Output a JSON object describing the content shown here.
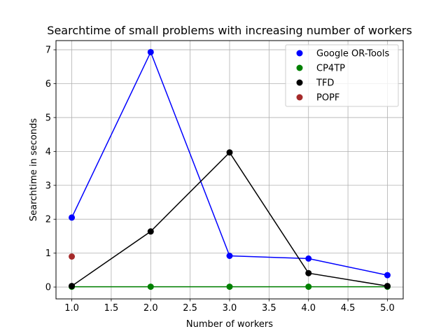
{
  "chart_data": {
    "type": "line",
    "title": "Searchtime of small problems with increasing number of workers",
    "xlabel": "Number of workers",
    "ylabel": "Searchtime in seconds",
    "xlim": [
      0.8,
      5.2
    ],
    "ylim": [
      -0.35,
      7.27
    ],
    "xticks": [
      "1.0",
      "1.5",
      "2.0",
      "2.5",
      "3.0",
      "3.5",
      "4.0",
      "4.5",
      "5.0"
    ],
    "yticks": [
      "0",
      "1",
      "2",
      "3",
      "4",
      "5",
      "6",
      "7"
    ],
    "grid": true,
    "legend_position": "top-right",
    "series": [
      {
        "name": "Google OR-Tools",
        "color": "#0000ff",
        "x": [
          1,
          2,
          3,
          4,
          5
        ],
        "y": [
          2.05,
          6.93,
          0.92,
          0.84,
          0.35
        ],
        "line": true
      },
      {
        "name": "CP4TP",
        "color": "#008000",
        "x": [
          1,
          2,
          3,
          4,
          5
        ],
        "y": [
          0.01,
          0.01,
          0.01,
          0.01,
          0.01
        ],
        "line": true
      },
      {
        "name": "TFD",
        "color": "#000000",
        "x": [
          1,
          2,
          3,
          4,
          5
        ],
        "y": [
          0.03,
          1.64,
          3.97,
          0.41,
          0.03
        ],
        "line": true
      },
      {
        "name": "POPF",
        "color": "#a52a2a",
        "x": [
          1
        ],
        "y": [
          0.9
        ],
        "line": false
      }
    ]
  }
}
